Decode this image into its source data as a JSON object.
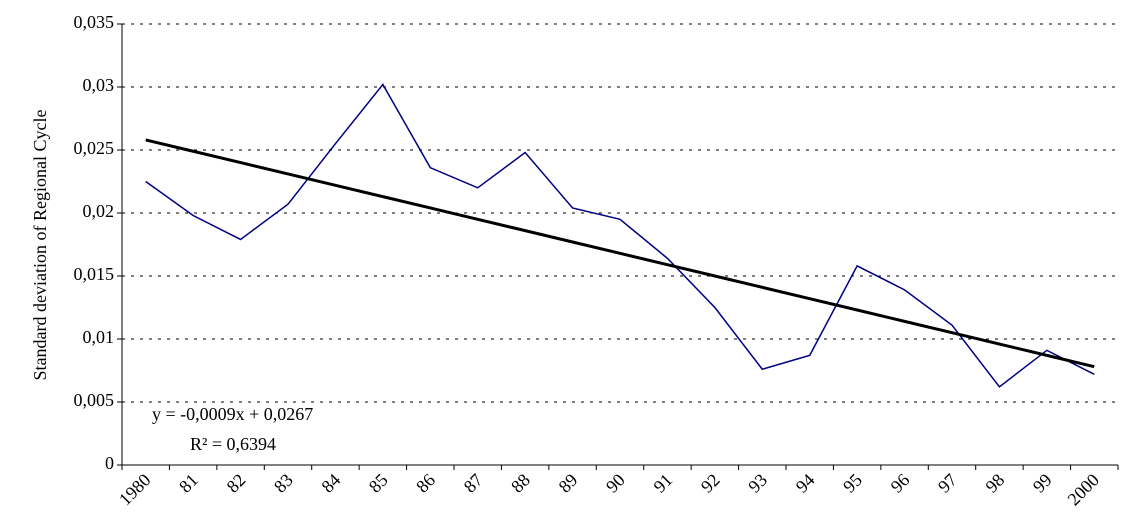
{
  "chart_data": {
    "type": "line",
    "y_label": "Standard deviation of Regional Cycle",
    "categories": [
      "1980",
      "81",
      "82",
      "83",
      "84",
      "85",
      "86",
      "87",
      "88",
      "89",
      "90",
      "91",
      "92",
      "93",
      "94",
      "95",
      "96",
      "97",
      "98",
      "99",
      "2000"
    ],
    "series": [
      {
        "color": "#000080",
        "width": 1.5,
        "values": [
          0.0225,
          0.0198,
          0.0179,
          0.0207,
          0.0255,
          0.0302,
          0.0236,
          0.022,
          0.0248,
          0.0204,
          0.0195,
          0.0164,
          0.0125,
          0.0076,
          0.0087,
          0.0158,
          0.0139,
          0.0111,
          0.0062,
          0.0091,
          0.0072
        ]
      },
      {
        "color": "#000000",
        "width": 3,
        "values": [
          0.0258,
          0.0249,
          0.024,
          0.0231,
          0.0222,
          0.0213,
          0.0204,
          0.0195,
          0.0186,
          0.0177,
          0.0168,
          0.0159,
          0.015,
          0.0141,
          0.0132,
          0.0123,
          0.0114,
          0.0105,
          0.0096,
          0.0087,
          0.0078
        ]
      }
    ],
    "ylim": [
      0,
      0.035
    ],
    "yticks": [
      0,
      {
        "value": 0.005,
        "label": "0,005"
      },
      {
        "value": 0.01,
        "label": "0,01"
      },
      {
        "value": 0.015,
        "label": "0,015"
      },
      {
        "value": 0.02,
        "label": "0,02"
      },
      {
        "value": 0.025,
        "label": "0,025"
      },
      {
        "value": 0.03,
        "label": "0,03"
      },
      {
        "value": 0.035,
        "label": "0,035"
      }
    ],
    "grid": true,
    "annotations": [
      "y = -0,0009x + 0,0267",
      "R² = 0,6394"
    ]
  }
}
